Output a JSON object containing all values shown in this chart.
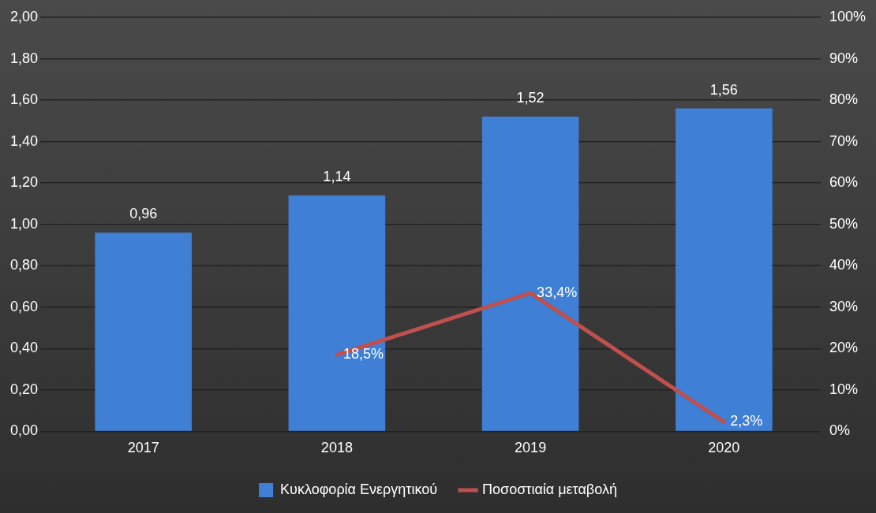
{
  "chart_data": {
    "type": "bar",
    "categories": [
      "2017",
      "2018",
      "2019",
      "2020"
    ],
    "series": [
      {
        "name": "Κυκλοφορία Ενεργητικού",
        "color": "#3f7fd6",
        "values": [
          0.96,
          1.14,
          1.52,
          1.56
        ],
        "value_labels": [
          "0,96",
          "1,14",
          "1,52",
          "1,56"
        ]
      },
      {
        "name": "Ποσοστιαία μεταβολή",
        "type": "line",
        "axis": "y2",
        "color": "#c0504d",
        "values": [
          null,
          18.5,
          33.4,
          2.3
        ],
        "value_labels": [
          null,
          "18,5%",
          "33,4%",
          "2,3%"
        ]
      }
    ],
    "ylim": [
      0,
      2
    ],
    "yticks": [
      {
        "value": 0,
        "label": "0,00"
      },
      {
        "value": 0.2,
        "label": "0,20"
      },
      {
        "value": 0.4,
        "label": "0,40"
      },
      {
        "value": 0.6,
        "label": "0,60"
      },
      {
        "value": 0.8,
        "label": "0,80"
      },
      {
        "value": 1,
        "label": "1,00"
      },
      {
        "value": 1.2,
        "label": "1,20"
      },
      {
        "value": 1.4,
        "label": "1,40"
      },
      {
        "value": 1.6,
        "label": "1,60"
      },
      {
        "value": 1.8,
        "label": "1,80"
      },
      {
        "value": 2,
        "label": "2,00"
      }
    ],
    "y2lim": [
      0,
      100
    ],
    "y2ticks": [
      {
        "value": 0,
        "label": "0%"
      },
      {
        "value": 10,
        "label": "10%"
      },
      {
        "value": 20,
        "label": "20%"
      },
      {
        "value": 30,
        "label": "30%"
      },
      {
        "value": 40,
        "label": "40%"
      },
      {
        "value": 50,
        "label": "50%"
      },
      {
        "value": 60,
        "label": "60%"
      },
      {
        "value": 70,
        "label": "70%"
      },
      {
        "value": 80,
        "label": "80%"
      },
      {
        "value": 90,
        "label": "90%"
      },
      {
        "value": 100,
        "label": "100%"
      }
    ],
    "grid": "y",
    "legend": "bottom",
    "marker": "none",
    "line_style": "solid"
  }
}
